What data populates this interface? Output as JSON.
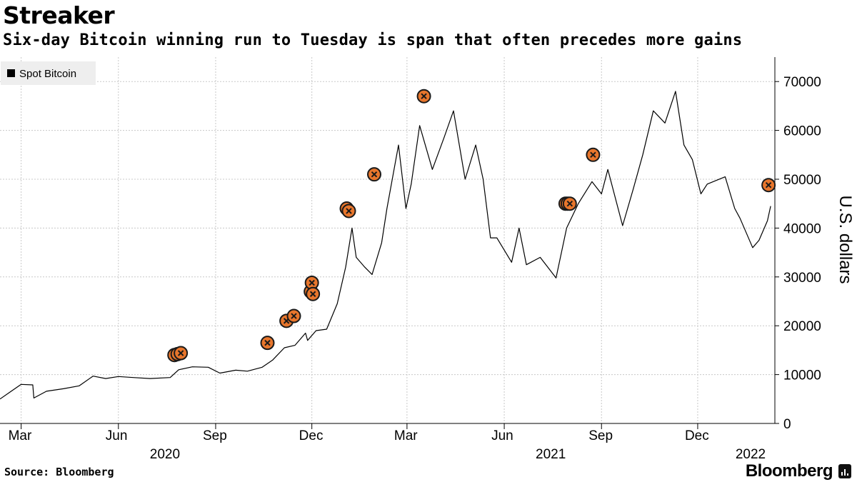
{
  "header": {
    "title": "Streaker",
    "subtitle": "Six-day Bitcoin winning run to Tuesday is span that often precedes more gains"
  },
  "footer": {
    "source": "Source: Bloomberg",
    "brand": "Bloomberg"
  },
  "colors": {
    "line": "#000000",
    "marker_fill": "#e8762c",
    "marker_stroke": "#1a1a1a",
    "grid": "#c8c8c8",
    "legend_bg": "#eeeeee"
  },
  "chart_data": {
    "type": "line",
    "title": "Streaker",
    "subtitle": "Six-day Bitcoin winning run to Tuesday is span that often precedes more gains",
    "ylabel": "U.S. dollars",
    "ylim": [
      0,
      75000
    ],
    "y_ticks": [
      0,
      10000,
      20000,
      30000,
      40000,
      50000,
      60000,
      70000
    ],
    "y_axis_side": "right",
    "grid": true,
    "legend_placement": "top-left",
    "x_range": [
      "2020-02-10",
      "2022-02-12"
    ],
    "x_tick_labels": [
      {
        "date": "2020-03-01",
        "label": "Mar"
      },
      {
        "date": "2020-06-01",
        "label": "Jun"
      },
      {
        "date": "2020-09-01",
        "label": "Sep"
      },
      {
        "date": "2020-12-01",
        "label": "Dec"
      },
      {
        "date": "2021-03-01",
        "label": "Mar"
      },
      {
        "date": "2021-06-01",
        "label": "Jun"
      },
      {
        "date": "2021-09-01",
        "label": "Sep"
      },
      {
        "date": "2021-12-01",
        "label": "Dec"
      }
    ],
    "year_labels": [
      {
        "date": "2020-07-15",
        "label": "2020"
      },
      {
        "date": "2021-07-15",
        "label": "2021"
      },
      {
        "date": "2022-01-20",
        "label": "2022"
      }
    ],
    "series": [
      {
        "name": "Spot Bitcoin",
        "x": [
          "2020-02-10",
          "2020-02-20",
          "2020-03-01",
          "2020-03-12",
          "2020-03-13",
          "2020-03-25",
          "2020-04-10",
          "2020-04-25",
          "2020-05-08",
          "2020-05-20",
          "2020-06-01",
          "2020-06-15",
          "2020-07-01",
          "2020-07-20",
          "2020-07-28",
          "2020-08-10",
          "2020-08-25",
          "2020-09-05",
          "2020-09-20",
          "2020-10-01",
          "2020-10-15",
          "2020-10-25",
          "2020-11-05",
          "2020-11-15",
          "2020-11-25",
          "2020-11-27",
          "2020-12-05",
          "2020-12-15",
          "2020-12-25",
          "2021-01-02",
          "2021-01-08",
          "2021-01-12",
          "2021-01-20",
          "2021-01-27",
          "2021-02-05",
          "2021-02-10",
          "2021-02-21",
          "2021-02-28",
          "2021-03-05",
          "2021-03-13",
          "2021-03-25",
          "2021-04-05",
          "2021-04-14",
          "2021-04-25",
          "2021-05-05",
          "2021-05-12",
          "2021-05-19",
          "2021-05-25",
          "2021-06-08",
          "2021-06-15",
          "2021-06-22",
          "2021-07-05",
          "2021-07-20",
          "2021-07-30",
          "2021-08-10",
          "2021-08-23",
          "2021-09-01",
          "2021-09-07",
          "2021-09-21",
          "2021-10-01",
          "2021-10-10",
          "2021-10-20",
          "2021-10-31",
          "2021-11-10",
          "2021-11-18",
          "2021-11-26",
          "2021-12-04",
          "2021-12-10",
          "2021-12-27",
          "2022-01-05",
          "2022-01-10",
          "2022-01-22",
          "2022-01-28",
          "2022-02-05",
          "2022-02-08"
        ],
        "y": [
          5000,
          6500,
          8000,
          7900,
          5200,
          6600,
          7100,
          7700,
          9700,
          9200,
          9600,
          9400,
          9200,
          9400,
          11000,
          11600,
          11500,
          10300,
          10900,
          10700,
          11500,
          13000,
          15500,
          16000,
          18500,
          17000,
          19000,
          19300,
          24500,
          32000,
          40000,
          34000,
          32000,
          30500,
          37000,
          44000,
          57000,
          44000,
          49000,
          61000,
          52000,
          58500,
          64000,
          50000,
          57000,
          50000,
          38000,
          38000,
          33000,
          40000,
          32500,
          34000,
          29800,
          40000,
          45000,
          49500,
          47000,
          52000,
          40500,
          48000,
          55000,
          64000,
          61500,
          68000,
          57000,
          54000,
          47000,
          49000,
          50500,
          44000,
          42000,
          36000,
          37500,
          41500,
          44500
        ]
      }
    ],
    "markers": [
      {
        "x": "2020-07-24",
        "y": 14000
      },
      {
        "x": "2020-07-27",
        "y": 14200
      },
      {
        "x": "2020-07-30",
        "y": 14400
      },
      {
        "x": "2020-10-20",
        "y": 16500
      },
      {
        "x": "2020-11-07",
        "y": 21000
      },
      {
        "x": "2020-11-14",
        "y": 22000
      },
      {
        "x": "2020-11-30",
        "y": 27000
      },
      {
        "x": "2020-12-01",
        "y": 28800
      },
      {
        "x": "2020-12-02",
        "y": 26500
      },
      {
        "x": "2021-01-03",
        "y": 44000
      },
      {
        "x": "2021-01-05",
        "y": 43500
      },
      {
        "x": "2021-01-29",
        "y": 51000
      },
      {
        "x": "2021-03-17",
        "y": 67000
      },
      {
        "x": "2021-07-29",
        "y": 45000
      },
      {
        "x": "2021-07-31",
        "y": 45000
      },
      {
        "x": "2021-08-02",
        "y": 45000
      },
      {
        "x": "2021-08-24",
        "y": 55000
      },
      {
        "x": "2022-02-06",
        "y": 48800
      }
    ]
  }
}
